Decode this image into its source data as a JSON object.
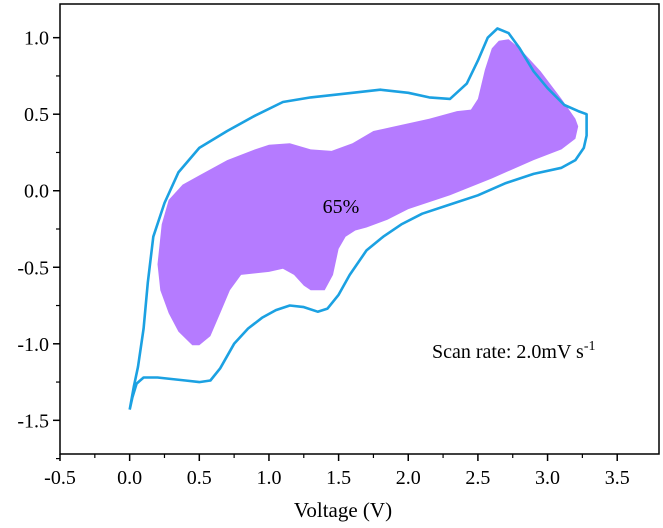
{
  "chart_data": {
    "type": "area",
    "xlabel": "Voltage (V)",
    "ylabel": "",
    "xlim": [
      -0.5,
      3.8
    ],
    "ylim": [
      -1.72,
      1.22
    ],
    "xticks": [
      -0.5,
      0.0,
      0.5,
      1.0,
      1.5,
      2.0,
      2.5,
      3.0,
      3.5
    ],
    "xtick_labels": [
      "-0.5",
      "0.0",
      "0.5",
      "1.0",
      "1.5",
      "2.0",
      "2.5",
      "3.0",
      "3.5"
    ],
    "yticks": [
      1.0,
      0.5,
      0.0,
      -0.5,
      -1.0,
      -1.5
    ],
    "ytick_labels": [
      "1.0",
      "0.5",
      "0.0",
      "-0.5",
      "-1.0",
      "-1.5"
    ],
    "grid": false,
    "colors": {
      "cv_curve": "#1ba1e2",
      "capacitive_fill": "#b57bff"
    },
    "annotations": {
      "percent": "65%",
      "scan_rate_main": "Scan rate: 2.0mV s",
      "scan_rate_sup": "-1"
    },
    "series": [
      {
        "kind": "line",
        "points": [
          [
            0.0,
            -1.43
          ],
          [
            0.02,
            -1.35
          ],
          [
            0.05,
            -1.26
          ],
          [
            0.1,
            -1.22
          ],
          [
            0.2,
            -1.22
          ],
          [
            0.3,
            -1.23
          ],
          [
            0.4,
            -1.24
          ],
          [
            0.5,
            -1.25
          ],
          [
            0.58,
            -1.24
          ],
          [
            0.65,
            -1.16
          ],
          [
            0.75,
            -1.0
          ],
          [
            0.85,
            -0.9
          ],
          [
            0.95,
            -0.83
          ],
          [
            1.05,
            -0.78
          ],
          [
            1.15,
            -0.75
          ],
          [
            1.25,
            -0.76
          ],
          [
            1.35,
            -0.79
          ],
          [
            1.42,
            -0.77
          ],
          [
            1.5,
            -0.68
          ],
          [
            1.58,
            -0.55
          ],
          [
            1.7,
            -0.39
          ],
          [
            1.82,
            -0.3
          ],
          [
            1.95,
            -0.22
          ],
          [
            2.1,
            -0.15
          ],
          [
            2.3,
            -0.09
          ],
          [
            2.5,
            -0.03
          ],
          [
            2.7,
            0.05
          ],
          [
            2.9,
            0.11
          ],
          [
            3.1,
            0.15
          ],
          [
            3.2,
            0.2
          ],
          [
            3.26,
            0.28
          ],
          [
            3.28,
            0.36
          ],
          [
            3.28,
            0.5
          ],
          [
            3.22,
            0.52
          ],
          [
            3.12,
            0.56
          ],
          [
            3.0,
            0.67
          ],
          [
            2.9,
            0.78
          ],
          [
            2.8,
            0.93
          ],
          [
            2.72,
            1.03
          ],
          [
            2.64,
            1.06
          ],
          [
            2.57,
            1.0
          ],
          [
            2.5,
            0.85
          ],
          [
            2.42,
            0.7
          ],
          [
            2.3,
            0.6
          ],
          [
            2.15,
            0.61
          ],
          [
            2.0,
            0.64
          ],
          [
            1.8,
            0.66
          ],
          [
            1.6,
            0.64
          ],
          [
            1.3,
            0.61
          ],
          [
            1.1,
            0.58
          ],
          [
            0.9,
            0.49
          ],
          [
            0.7,
            0.39
          ],
          [
            0.5,
            0.28
          ],
          [
            0.35,
            0.12
          ],
          [
            0.25,
            -0.08
          ],
          [
            0.17,
            -0.3
          ],
          [
            0.13,
            -0.6
          ],
          [
            0.1,
            -0.9
          ],
          [
            0.06,
            -1.15
          ],
          [
            0.03,
            -1.28
          ],
          [
            0.0,
            -1.43
          ]
        ]
      },
      {
        "kind": "area",
        "points": [
          [
            0.2,
            -0.48
          ],
          [
            0.23,
            -0.22
          ],
          [
            0.28,
            -0.06
          ],
          [
            0.38,
            0.04
          ],
          [
            0.5,
            0.1
          ],
          [
            0.7,
            0.2
          ],
          [
            0.9,
            0.27
          ],
          [
            1.0,
            0.3
          ],
          [
            1.15,
            0.31
          ],
          [
            1.3,
            0.27
          ],
          [
            1.45,
            0.26
          ],
          [
            1.6,
            0.31
          ],
          [
            1.75,
            0.39
          ],
          [
            1.95,
            0.43
          ],
          [
            2.15,
            0.47
          ],
          [
            2.35,
            0.52
          ],
          [
            2.45,
            0.53
          ],
          [
            2.5,
            0.6
          ],
          [
            2.55,
            0.79
          ],
          [
            2.6,
            0.93
          ],
          [
            2.65,
            0.98
          ],
          [
            2.72,
            0.99
          ],
          [
            2.8,
            0.93
          ],
          [
            2.95,
            0.78
          ],
          [
            3.1,
            0.6
          ],
          [
            3.2,
            0.47
          ],
          [
            3.22,
            0.42
          ],
          [
            3.2,
            0.34
          ],
          [
            3.1,
            0.27
          ],
          [
            2.9,
            0.2
          ],
          [
            2.6,
            0.08
          ],
          [
            2.3,
            -0.03
          ],
          [
            2.0,
            -0.12
          ],
          [
            1.85,
            -0.19
          ],
          [
            1.7,
            -0.24
          ],
          [
            1.62,
            -0.26
          ],
          [
            1.55,
            -0.3
          ],
          [
            1.5,
            -0.38
          ],
          [
            1.46,
            -0.55
          ],
          [
            1.4,
            -0.65
          ],
          [
            1.3,
            -0.65
          ],
          [
            1.25,
            -0.62
          ],
          [
            1.18,
            -0.55
          ],
          [
            1.1,
            -0.51
          ],
          [
            1.0,
            -0.53
          ],
          [
            0.9,
            -0.54
          ],
          [
            0.8,
            -0.55
          ],
          [
            0.72,
            -0.65
          ],
          [
            0.65,
            -0.8
          ],
          [
            0.58,
            -0.95
          ],
          [
            0.5,
            -1.01
          ],
          [
            0.45,
            -1.01
          ],
          [
            0.35,
            -0.92
          ],
          [
            0.28,
            -0.8
          ],
          [
            0.22,
            -0.65
          ],
          [
            0.2,
            -0.48
          ]
        ]
      }
    ]
  }
}
